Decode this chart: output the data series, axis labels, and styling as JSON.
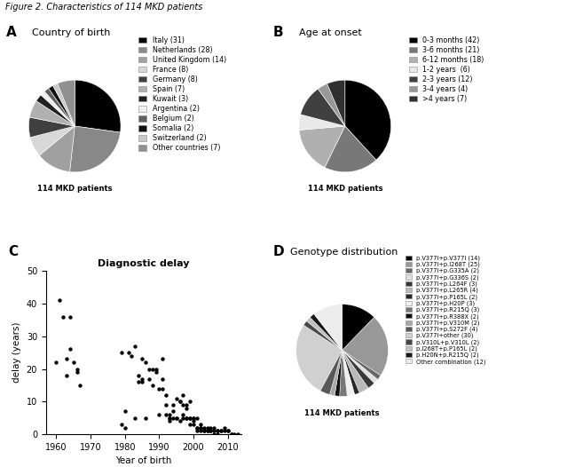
{
  "title": "Figure 2. Characteristics of 114 MKD patients",
  "panel_A": {
    "label": "A",
    "title": "Country of birth",
    "center_label": "114 MKD patients",
    "labels": [
      "Italy (31)",
      "Netherlands (28)",
      "United Kingdom (14)",
      "France (8)",
      "Germany (8)",
      "Spain (7)",
      "Kuwait (3)",
      "Argentina (2)",
      "Belgium (2)",
      "Somalia (2)",
      "Switzerland (2)",
      "Other countries (7)"
    ],
    "values": [
      31,
      28,
      14,
      8,
      8,
      7,
      3,
      2,
      2,
      2,
      2,
      7
    ],
    "colors": [
      "#000000",
      "#888888",
      "#a0a0a0",
      "#d8d8d8",
      "#404040",
      "#b0b0b0",
      "#202020",
      "#f0f0f0",
      "#606060",
      "#101010",
      "#c8c8c8",
      "#909090"
    ]
  },
  "panel_B": {
    "label": "B",
    "title": "Age at onset",
    "center_label": "114 MKD patients",
    "labels": [
      "0-3 months (42)",
      "3-6 months (21)",
      "6-12 months (18)",
      "1-2 years  (6)",
      "2-3 years (12)",
      "3-4 years (4)",
      ">4 years (7)"
    ],
    "values": [
      42,
      21,
      18,
      6,
      12,
      4,
      7
    ],
    "colors": [
      "#000000",
      "#787878",
      "#b0b0b0",
      "#e8e8e8",
      "#404040",
      "#989898",
      "#303030"
    ]
  },
  "panel_C": {
    "label": "C",
    "title": "Diagnostic delay",
    "xlabel": "Year of birth",
    "ylabel": "delay (years)",
    "xlim": [
      1957,
      2014
    ],
    "ylim": [
      0,
      50
    ],
    "xticks": [
      1960,
      1970,
      1980,
      1990,
      2000,
      2010
    ],
    "yticks": [
      0,
      10,
      20,
      30,
      40,
      50
    ],
    "scatter_x": [
      1960,
      1961,
      1962,
      1963,
      1963,
      1964,
      1964,
      1965,
      1966,
      1966,
      1967,
      1979,
      1979,
      1980,
      1980,
      1981,
      1982,
      1983,
      1983,
      1984,
      1984,
      1985,
      1985,
      1985,
      1986,
      1986,
      1987,
      1987,
      1988,
      1988,
      1989,
      1989,
      1990,
      1990,
      1991,
      1991,
      1991,
      1992,
      1992,
      1992,
      1993,
      1993,
      1993,
      1993,
      1994,
      1994,
      1994,
      1995,
      1995,
      1995,
      1996,
      1996,
      1996,
      1997,
      1997,
      1997,
      1997,
      1998,
      1998,
      1998,
      1998,
      1999,
      1999,
      1999,
      1999,
      2000,
      2000,
      2000,
      2000,
      2001,
      2001,
      2001,
      2001,
      2002,
      2002,
      2002,
      2002,
      2003,
      2003,
      2003,
      2004,
      2004,
      2004,
      2005,
      2005,
      2005,
      2006,
      2006,
      2006,
      2007,
      2007,
      2007,
      2008,
      2008,
      2009,
      2009,
      2010,
      2010,
      2011,
      2011,
      2012,
      2013
    ],
    "scatter_y": [
      22,
      41,
      36,
      23,
      18,
      36,
      26,
      22,
      19,
      20,
      15,
      25,
      3,
      2,
      7,
      25,
      24,
      5,
      27,
      16,
      18,
      17,
      23,
      16,
      5,
      22,
      17,
      20,
      15,
      20,
      19,
      20,
      14,
      6,
      14,
      23,
      17,
      6,
      9,
      12,
      5,
      6,
      5,
      4,
      5,
      7,
      9,
      5,
      5,
      11,
      4,
      10,
      10,
      9,
      5,
      6,
      12,
      5,
      5,
      9,
      8,
      5,
      5,
      10,
      3,
      3,
      5,
      5,
      4,
      1,
      2,
      2,
      5,
      3,
      2,
      1,
      2,
      2,
      1,
      1,
      1,
      2,
      1,
      2,
      1,
      1,
      2,
      0,
      1,
      1,
      1,
      0,
      1,
      1,
      2,
      1,
      1,
      1,
      0,
      0,
      0,
      0
    ]
  },
  "panel_D": {
    "label": "D",
    "title": "Genotype distribution",
    "center_label": "114 MKD patients",
    "labels": [
      "p.V377I+p.V377I (14)",
      "p.V377I+p.I268T (25)",
      "p.V377I+p.G335A (2)",
      "p.V377I+p.G336S (2)",
      "p.V377I+p.L264F (3)",
      "p.V377I+p.L265R (4)",
      "p.V377I+p.P165L (2)",
      "p.V377I+p.H20P (3)",
      "p.V377I+p.R215Q (3)",
      "p.V377I+p.R388X (2)",
      "p.V377I+p.V310M (2)",
      "p.V377I+p.S272F (4)",
      "p.V377I+other (30)",
      "p.V310L+p.V310L (2)",
      "p.I268T+p.P165L (2)",
      "p.H20N+p.R215Q (2)",
      "Other combination (12)"
    ],
    "values": [
      14,
      25,
      2,
      2,
      3,
      4,
      2,
      3,
      3,
      2,
      2,
      4,
      30,
      2,
      2,
      2,
      12
    ],
    "colors": [
      "#000000",
      "#989898",
      "#686868",
      "#e0e0e0",
      "#383838",
      "#b8b8b8",
      "#282828",
      "#f0f0f0",
      "#787878",
      "#101010",
      "#a8a8a8",
      "#585858",
      "#d0d0d0",
      "#484848",
      "#c0c0c0",
      "#181818",
      "#ececec"
    ]
  }
}
